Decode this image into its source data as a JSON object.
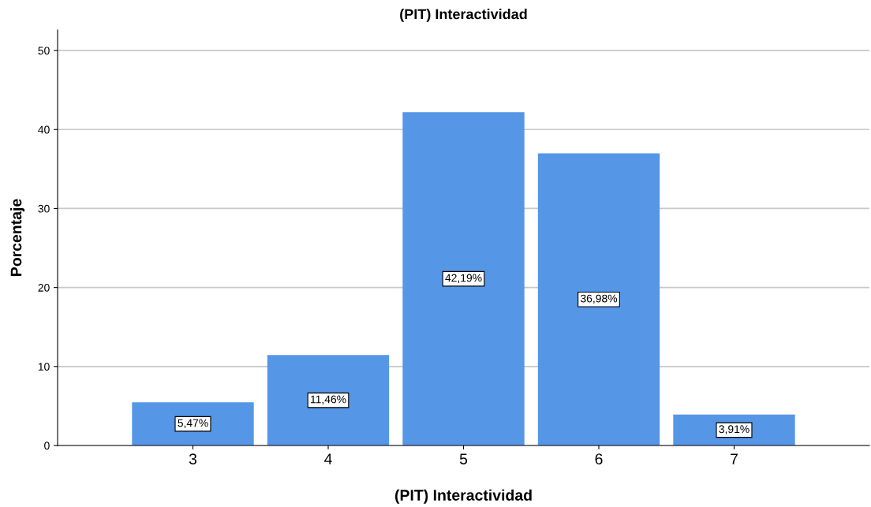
{
  "chart_data": {
    "type": "bar",
    "title": "(PIT) Interactividad",
    "xlabel": "(PIT) Interactividad",
    "ylabel": "Porcentaje",
    "categories": [
      "3",
      "4",
      "5",
      "6",
      "7"
    ],
    "values": [
      5.47,
      11.46,
      42.19,
      36.98,
      3.91
    ],
    "value_labels": [
      "5,47%",
      "11,46%",
      "42,19%",
      "36,98%",
      "3,91%"
    ],
    "color": "#5596e6",
    "ylim": [
      0,
      52.6
    ],
    "yticks": [
      0,
      10,
      20,
      30,
      40,
      50
    ],
    "grid": "y",
    "legend": false
  }
}
